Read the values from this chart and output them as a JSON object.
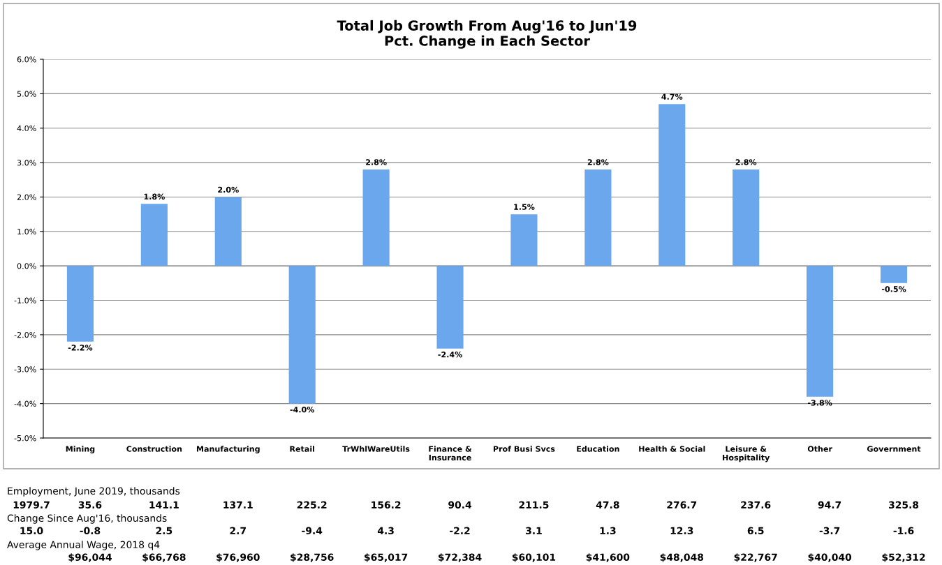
{
  "chart_data": {
    "type": "bar",
    "title": "Total Job Growth From Aug'16 to Jun'19\nPct. Change in Each Sector",
    "categories": [
      "Mining",
      "Construction",
      "Manufacturing",
      "Retail",
      "TrWhlWareUtils",
      "Finance &\nInsurance",
      "Prof Busi Svcs",
      "Education",
      "Health & Social",
      "Leisure &\nHospitality",
      "Other",
      "Government"
    ],
    "values": [
      -2.2,
      1.8,
      2.0,
      -4.0,
      2.8,
      -2.4,
      1.5,
      2.8,
      4.7,
      2.8,
      -3.8,
      -0.5
    ],
    "value_labels": [
      "-2.2%",
      "1.8%",
      "2.0%",
      "-4.0%",
      "2.8%",
      "-2.4%",
      "1.5%",
      "2.8%",
      "4.7%",
      "2.8%",
      "-3.8%",
      "-0.5%"
    ],
    "color": "#6aa7ec",
    "ylim": [
      -5,
      6
    ],
    "yticks": [
      {
        "value": -5,
        "label": "-5.0%"
      },
      {
        "value": -4,
        "label": "-4.0%"
      },
      {
        "value": -3,
        "label": "-3.0%"
      },
      {
        "value": -2,
        "label": "-2.0%"
      },
      {
        "value": -1,
        "label": "-1.0%"
      },
      {
        "value": 0,
        "label": "0.0%"
      },
      {
        "value": 1,
        "label": "1.0%"
      },
      {
        "value": 2,
        "label": "2.0%"
      },
      {
        "value": 3,
        "label": "3.0%"
      },
      {
        "value": 4,
        "label": "4.0%"
      },
      {
        "value": 5,
        "label": "5.0%"
      },
      {
        "value": 6,
        "label": "6.0%"
      }
    ],
    "grid": "y",
    "annotations": [
      "Employment, June 2019, thousands",
      "1979.7 35.6 141.1 137.1 225.2 156.2 90.4 211.5 47.8 276.7 237.6 94.7 325.8",
      "Change Since Aug'16, thousands",
      "15.0 -0.8 2.5 2.7 -9.4 4.3 -2.2 3.1 1.3 12.3 6.5 -3.7 -1.6",
      "Average Annual Wage, 2018 q4",
      "$96,044 $66,768 $76,960 $28,756 $65,017 $72,384 $60,101 $41,600 $48,048 $22,767 $40,040 $52,312"
    ]
  }
}
